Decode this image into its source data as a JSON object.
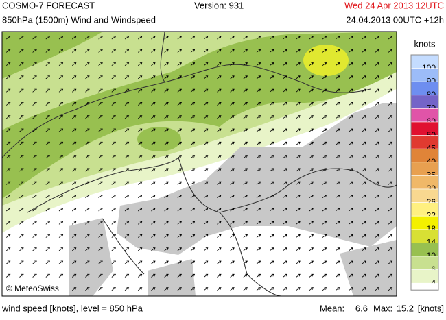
{
  "header": {
    "title": "COSMO-7 FORECAST",
    "subtitle": "850hPa (1500m) Wind and Windspeed",
    "version": "Version: 931",
    "valid_time": "Wed 24 Apr 2013 12UTC",
    "run_time": "24.04.2013 00UTC +12h"
  },
  "map": {
    "copyright": "© MeteoSwiss"
  },
  "legend": {
    "title": "knots",
    "items": [
      {
        "label": "100",
        "color": "#c4dcff"
      },
      {
        "label": "90",
        "color": "#9cbcf8"
      },
      {
        "label": "80",
        "color": "#6e8ef0"
      },
      {
        "label": "70",
        "color": "#7464c8"
      },
      {
        "label": "60",
        "color": "#e054a8"
      },
      {
        "label": "50",
        "color": "#e01030"
      },
      {
        "label": "45",
        "color": "#e03a30"
      },
      {
        "label": "40",
        "color": "#e08438"
      },
      {
        "label": "35",
        "color": "#e8a050"
      },
      {
        "label": "30",
        "color": "#f0b868"
      },
      {
        "label": "26",
        "color": "#f8d890"
      },
      {
        "label": "22",
        "color": "#fff080"
      },
      {
        "label": "18",
        "color": "#f4f000"
      },
      {
        "label": "14",
        "color": "#d8e034"
      },
      {
        "label": "10",
        "color": "#98c050"
      },
      {
        "label": "6",
        "color": "#c8e090"
      },
      {
        "label": "4",
        "color": "#e8f4c8"
      }
    ]
  },
  "footer": {
    "description": "wind speed [knots], level = 850 hPa",
    "mean_label": "Mean:",
    "mean_value": "6.6",
    "max_label": "Max:",
    "max_value": "15.2",
    "unit": "[knots]"
  }
}
